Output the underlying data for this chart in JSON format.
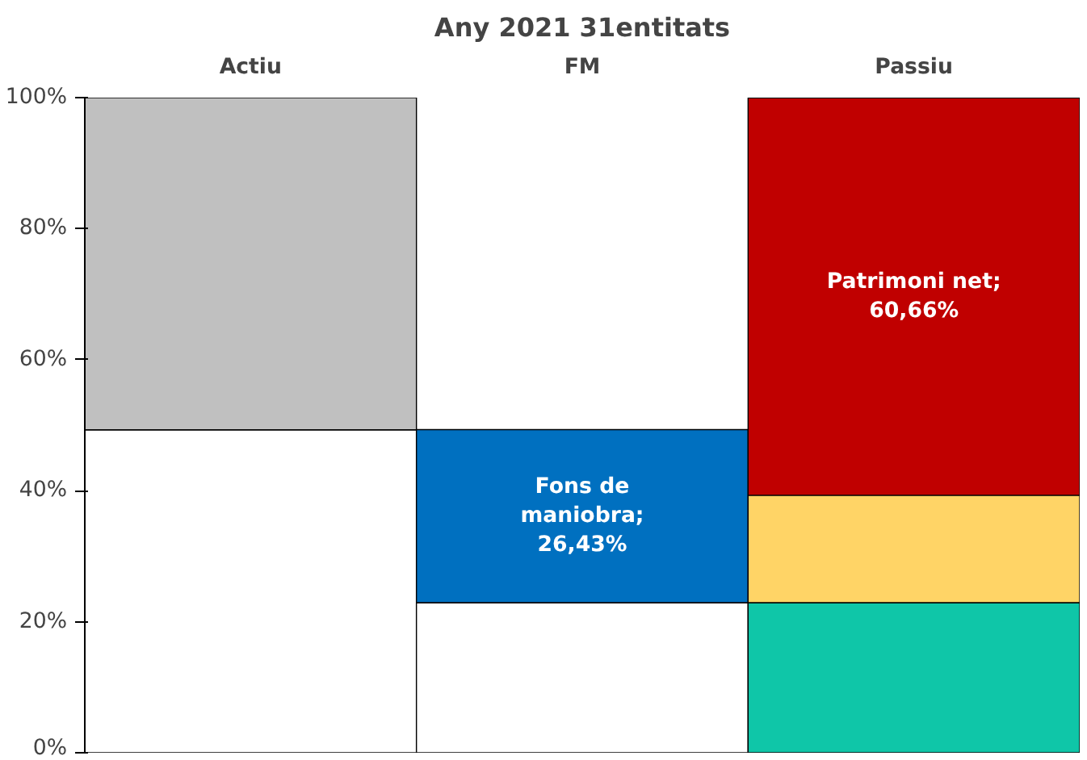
{
  "chart_data": {
    "type": "bar",
    "title": "Any 2021 31entitats",
    "categories": [
      "Actiu",
      "FM",
      "Passiu"
    ],
    "stacked": true,
    "ylim": [
      0,
      100
    ],
    "yticks": [
      {
        "value": 0,
        "label": "0%"
      },
      {
        "value": 20,
        "label": "20%"
      },
      {
        "value": 40,
        "label": "40%"
      },
      {
        "value": 60,
        "label": "60%"
      },
      {
        "value": 80,
        "label": "80%"
      },
      {
        "value": 100,
        "label": "100%"
      }
    ],
    "grid": false,
    "series": [
      {
        "colors": [
          "#ffffff",
          "#ffffff",
          "#0fc6a8"
        ],
        "values": [
          49.3,
          22.9,
          22.9
        ]
      },
      {
        "colors": [
          "#c0c0c0",
          "#0070c0",
          "#ffd466"
        ],
        "values": [
          50.7,
          26.43,
          16.4
        ],
        "value_labels": [
          null,
          "Fons de maniobra; 26,43%",
          null
        ]
      },
      {
        "colors": [
          "#c00000",
          "#c00000",
          "#c00000"
        ],
        "values": [
          null,
          null,
          60.66
        ],
        "value_labels": [
          null,
          null,
          "Patrimoni net; 60,66%"
        ]
      }
    ]
  }
}
